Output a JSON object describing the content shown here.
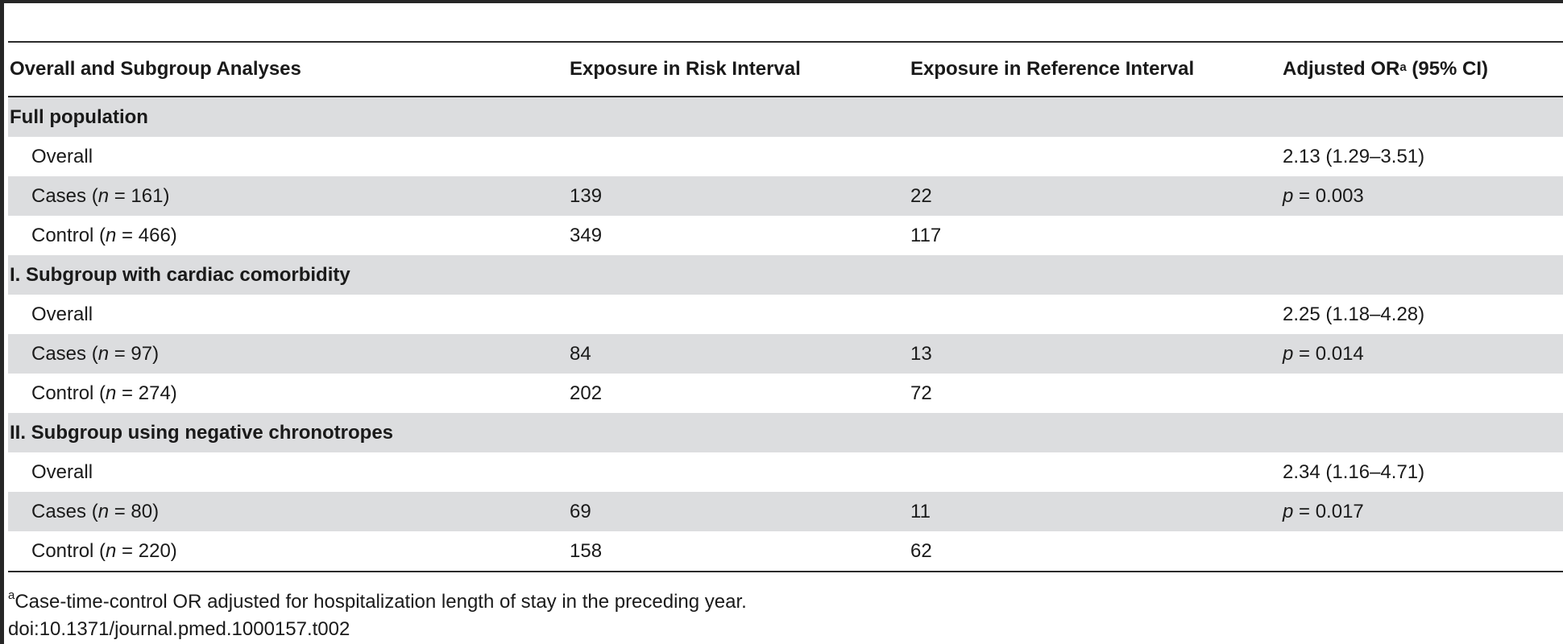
{
  "headers": {
    "col0": "Overall and Subgroup Analyses",
    "col1": "Exposure in Risk Interval",
    "col2": "Exposure in Reference Interval",
    "col3_main": "Adjusted OR",
    "col3_sup": "a",
    "col3_rest": " (95% CI)"
  },
  "sections": [
    {
      "title": "Full population",
      "overall": {
        "label": "Overall",
        "or_ci": "2.13 (1.29–3.51)"
      },
      "cases": {
        "label": "Cases (",
        "n_var": "n",
        "n_text": " = 161)",
        "risk": "139",
        "reference": "22",
        "p_var": "p",
        "p_text": " = 0.003"
      },
      "control": {
        "label": "Control (",
        "n_var": "n",
        "n_text": " = 466)",
        "risk": "349",
        "reference": "117"
      }
    },
    {
      "title": "I. Subgroup with cardiac comorbidity",
      "overall": {
        "label": "Overall",
        "or_ci": "2.25 (1.18–4.28)"
      },
      "cases": {
        "label": "Cases (",
        "n_var": "n",
        "n_text": " = 97)",
        "risk": "84",
        "reference": "13",
        "p_var": "p",
        "p_text": " = 0.014"
      },
      "control": {
        "label": "Control (",
        "n_var": "n",
        "n_text": " = 274)",
        "risk": "202",
        "reference": "72"
      }
    },
    {
      "title": "II. Subgroup using negative chronotropes",
      "overall": {
        "label": "Overall",
        "or_ci": "2.34 (1.16–4.71)"
      },
      "cases": {
        "label": "Cases (",
        "n_var": "n",
        "n_text": " = 80)",
        "risk": "69",
        "reference": "11",
        "p_var": "p",
        "p_text": " = 0.017"
      },
      "control": {
        "label": "Control (",
        "n_var": "n",
        "n_text": " = 220)",
        "risk": "158",
        "reference": "62"
      }
    }
  ],
  "footnote": {
    "sup": "a",
    "text": "Case-time-control OR adjusted for hospitalization length of stay in the preceding year.",
    "doi": "doi:10.1371/journal.pmed.1000157.t002"
  }
}
